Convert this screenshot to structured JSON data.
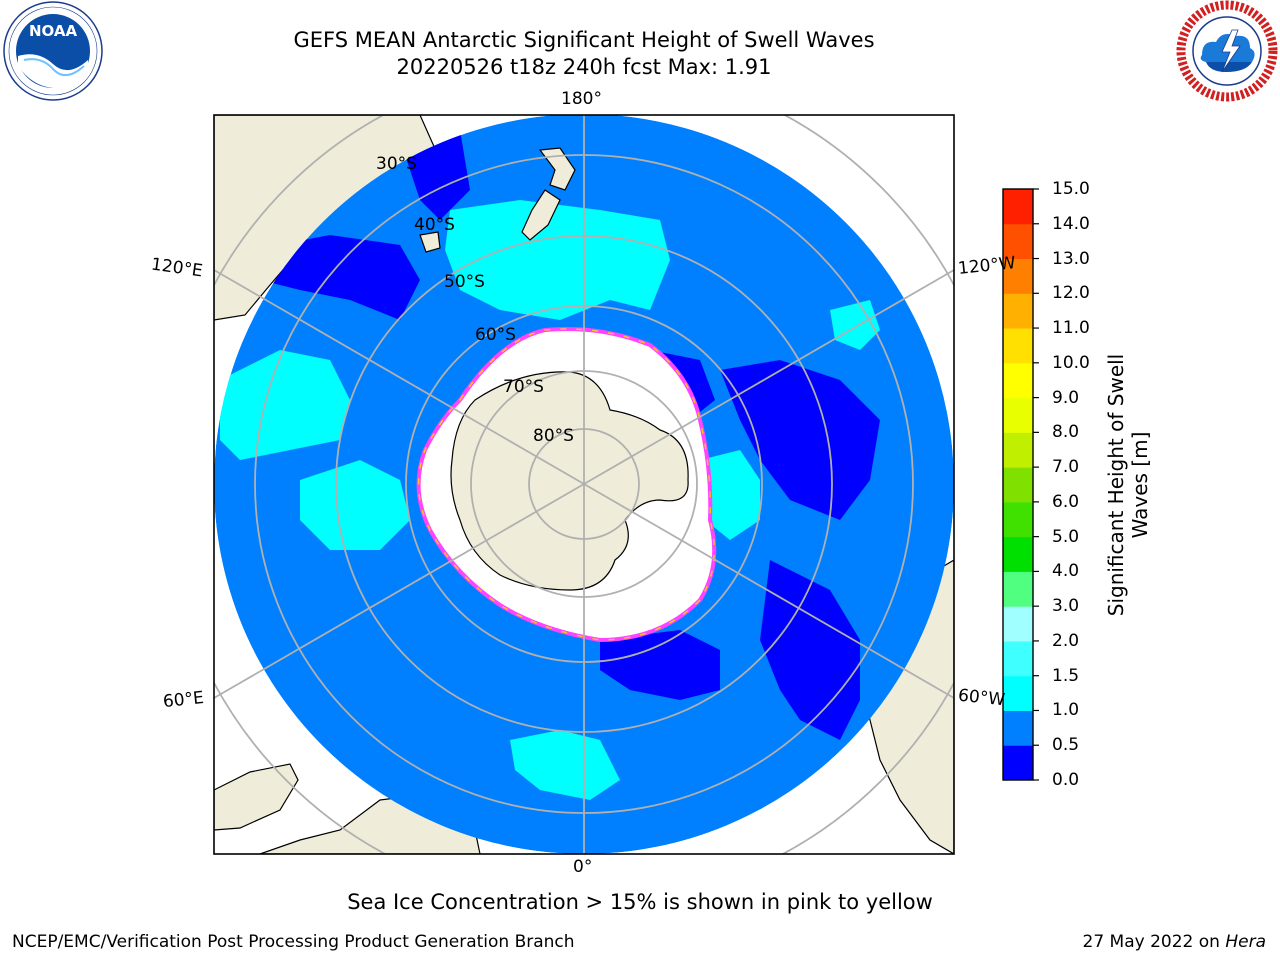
{
  "header": {
    "title_line1": "GEFS MEAN Antarctic Significant Height of Swell Waves",
    "title_line2": "20220526 t18z 240h fcst   Max: 1.91"
  },
  "logos": {
    "left": "noaa-logo",
    "left_text": "NOAA",
    "right": "national-weather-service-logo"
  },
  "map": {
    "projection": "south-polar-stereographic",
    "lon_labels": {
      "top": "180°",
      "bottom": "0°",
      "upper_left": "120°E",
      "upper_right": "120°W",
      "lower_left": "60°E",
      "lower_right": "60°W"
    },
    "lat_labels": [
      "30°S",
      "40°S",
      "50°S",
      "60°S",
      "70°S",
      "80°S"
    ],
    "colors": {
      "land": "#efedd9",
      "ocean_base": "#0080ff",
      "swell_low": "#0000ff",
      "swell_mid": "#00ffff",
      "ice_fill": "#ffffff",
      "ice_edge_pink": "#ff44ff",
      "ice_edge_yellow": "#ffc020",
      "grid": "#b0b0b0"
    }
  },
  "colorbar": {
    "label_line1": "Significant Height of Swell",
    "label_line2": "Waves [m]",
    "ticks": [
      "0.0",
      "0.5",
      "1.0",
      "1.5",
      "2.0",
      "3.0",
      "4.0",
      "5.0",
      "6.0",
      "7.0",
      "8.0",
      "9.0",
      "10.0",
      "11.0",
      "12.0",
      "13.0",
      "14.0",
      "15.0"
    ],
    "colors": [
      "#0000ff",
      "#0080ff",
      "#00ffff",
      "#40ffff",
      "#a0ffff",
      "#50ff80",
      "#00e000",
      "#40e000",
      "#80e000",
      "#c0f000",
      "#e8ff00",
      "#ffff00",
      "#ffe000",
      "#ffb000",
      "#ff8000",
      "#ff5000",
      "#ff2000",
      "#ff0000"
    ]
  },
  "caption": "Sea Ice Concentration > 15% is shown in pink to yellow",
  "footer": {
    "left": "NCEP/EMC/Verification Post Processing Product Generation Branch",
    "right_date": "27 May 2022 on",
    "right_host": "Hera"
  }
}
